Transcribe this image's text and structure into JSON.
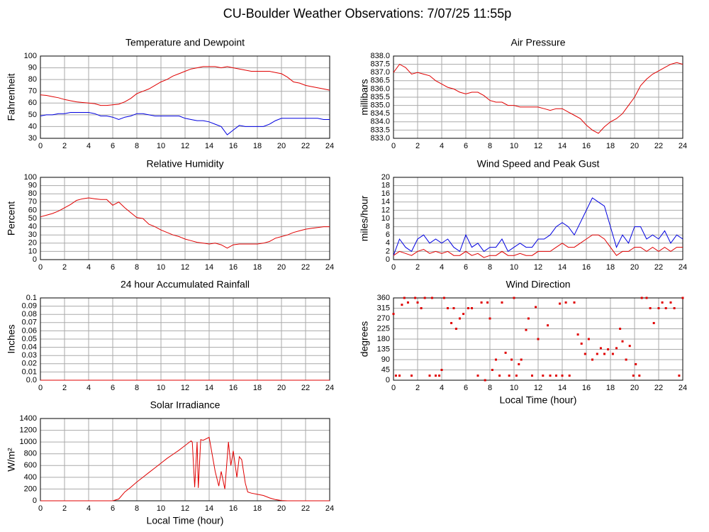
{
  "title": "CU-Boulder Weather Observations: 7/07/25 11:55p",
  "chart_data": [
    {
      "type": "line",
      "title": "Temperature and Dewpoint",
      "ylabel": "Fahrenheit",
      "xlim": [
        0,
        24
      ],
      "xticks": [
        0,
        2,
        4,
        6,
        8,
        10,
        12,
        14,
        16,
        18,
        20,
        22,
        24
      ],
      "ylim": [
        30,
        100
      ],
      "yticks": [
        30,
        40,
        50,
        60,
        70,
        80,
        90,
        100
      ],
      "grid": true,
      "x": [
        0,
        0.5,
        1,
        1.5,
        2,
        2.5,
        3,
        3.5,
        4,
        4.5,
        5,
        5.5,
        6,
        6.5,
        7,
        7.5,
        8,
        8.5,
        9,
        9.5,
        10,
        10.5,
        11,
        11.5,
        12,
        12.5,
        13,
        13.5,
        14,
        14.5,
        15,
        15.5,
        16,
        16.5,
        17,
        17.5,
        18,
        18.5,
        19,
        19.5,
        20,
        20.5,
        21,
        21.5,
        22,
        22.5,
        23,
        23.5,
        24
      ],
      "series": [
        {
          "color": "#e00000",
          "values": [
            67,
            66.5,
            65.5,
            64.5,
            63,
            62,
            61,
            60.5,
            60,
            59.5,
            58,
            58,
            58.5,
            59,
            61,
            64,
            68,
            70,
            72,
            75,
            78,
            80,
            83,
            85,
            87,
            89,
            90,
            91,
            91,
            91,
            90,
            91,
            90,
            89,
            88,
            87,
            87,
            87,
            87,
            86,
            85,
            82,
            78,
            77,
            75,
            74,
            73,
            72,
            71
          ]
        },
        {
          "color": "#0000e0",
          "values": [
            49,
            50,
            50,
            51,
            51,
            52,
            52,
            52,
            52,
            51,
            49,
            49,
            48,
            46,
            48,
            49,
            51,
            51,
            50,
            49,
            49,
            49,
            49,
            49,
            47,
            46,
            45,
            45,
            44,
            42,
            40,
            33,
            37,
            41,
            40,
            40,
            40,
            40,
            42,
            45,
            47,
            47,
            47,
            47,
            47,
            47,
            47,
            46,
            46
          ]
        }
      ]
    },
    {
      "type": "line",
      "title": "Air Pressure",
      "ylabel": "millibars",
      "xlim": [
        0,
        24
      ],
      "xticks": [
        0,
        2,
        4,
        6,
        8,
        10,
        12,
        14,
        16,
        18,
        20,
        22,
        24
      ],
      "ylim": [
        833,
        838
      ],
      "yticks": [
        {
          "value": 833,
          "label": "833.0"
        },
        833.5,
        {
          "value": 834,
          "label": "834.0"
        },
        834.5,
        {
          "value": 835,
          "label": "835.0"
        },
        835.5,
        {
          "value": 836,
          "label": "836.0"
        },
        836.5,
        {
          "value": 837,
          "label": "837.0"
        },
        837.5,
        {
          "value": 838,
          "label": "838.0"
        }
      ],
      "grid": true,
      "x": [
        0,
        0.5,
        1,
        1.5,
        2,
        2.5,
        3,
        3.5,
        4,
        4.5,
        5,
        5.5,
        6,
        6.5,
        7,
        7.5,
        8,
        8.5,
        9,
        9.5,
        10,
        10.5,
        11,
        11.5,
        12,
        12.5,
        13,
        13.5,
        14,
        14.5,
        15,
        15.5,
        16,
        16.5,
        17,
        17.5,
        18,
        18.5,
        19,
        19.5,
        20,
        20.5,
        21,
        21.5,
        22,
        22.5,
        23,
        23.5,
        24
      ],
      "series": [
        {
          "color": "#e00000",
          "values": [
            837,
            837.5,
            837.3,
            836.9,
            837,
            836.9,
            836.8,
            836.5,
            836.3,
            836.1,
            836,
            835.8,
            835.7,
            835.8,
            835.8,
            835.6,
            835.3,
            835.2,
            835.2,
            835,
            835,
            834.9,
            834.9,
            834.9,
            834.9,
            834.8,
            834.7,
            834.8,
            834.8,
            834.6,
            834.4,
            834.2,
            833.8,
            833.5,
            833.3,
            833.7,
            834,
            834.2,
            834.5,
            835,
            835.5,
            836.2,
            836.6,
            836.9,
            837.1,
            837.3,
            837.5,
            837.6,
            837.5
          ]
        }
      ]
    },
    {
      "type": "line",
      "title": "Relative Humidity",
      "ylabel": "Percent",
      "xlim": [
        0,
        24
      ],
      "xticks": [
        0,
        2,
        4,
        6,
        8,
        10,
        12,
        14,
        16,
        18,
        20,
        22,
        24
      ],
      "ylim": [
        0,
        100
      ],
      "yticks": [
        0,
        10,
        20,
        30,
        40,
        50,
        60,
        70,
        80,
        90,
        100
      ],
      "grid": true,
      "x": [
        0,
        0.5,
        1,
        1.5,
        2,
        2.5,
        3,
        3.5,
        4,
        4.5,
        5,
        5.5,
        6,
        6.5,
        7,
        7.5,
        8,
        8.5,
        9,
        9.5,
        10,
        10.5,
        11,
        11.5,
        12,
        12.5,
        13,
        13.5,
        14,
        14.5,
        15,
        15.5,
        16,
        16.5,
        17,
        17.5,
        18,
        18.5,
        19,
        19.5,
        20,
        20.5,
        21,
        21.5,
        22,
        22.5,
        23,
        23.5,
        24
      ],
      "series": [
        {
          "color": "#e00000",
          "values": [
            52,
            54,
            56,
            59,
            63,
            67,
            72,
            74,
            75,
            74,
            73,
            73,
            66,
            70,
            63,
            57,
            51,
            50,
            43,
            40,
            36,
            33,
            30,
            28,
            25,
            23,
            21,
            20,
            19,
            20,
            18,
            14,
            18,
            19,
            19,
            19,
            19,
            20,
            22,
            26,
            28,
            30,
            33,
            35,
            37,
            38,
            39,
            40,
            40
          ]
        }
      ]
    },
    {
      "type": "line",
      "title": "Wind Speed and Peak Gust",
      "ylabel": "miles/hour",
      "xlim": [
        0,
        24
      ],
      "xticks": [
        0,
        2,
        4,
        6,
        8,
        10,
        12,
        14,
        16,
        18,
        20,
        22,
        24
      ],
      "ylim": [
        0,
        20
      ],
      "yticks": [
        0,
        2,
        4,
        6,
        8,
        10,
        12,
        14,
        16,
        18,
        20
      ],
      "grid": true,
      "x": [
        0,
        0.5,
        1,
        1.5,
        2,
        2.5,
        3,
        3.5,
        4,
        4.5,
        5,
        5.5,
        6,
        6.5,
        7,
        7.5,
        8,
        8.5,
        9,
        9.5,
        10,
        10.5,
        11,
        11.5,
        12,
        12.5,
        13,
        13.5,
        14,
        14.5,
        15,
        15.5,
        16,
        16.5,
        17,
        17.5,
        18,
        18.5,
        19,
        19.5,
        20,
        20.5,
        21,
        21.5,
        22,
        22.5,
        23,
        23.5,
        24
      ],
      "series": [
        {
          "color": "#0000e0",
          "values": [
            1,
            5,
            3,
            2,
            5,
            6,
            4,
            5,
            4,
            5,
            3,
            2,
            6,
            3,
            4,
            2,
            3,
            3,
            5,
            2,
            3,
            4,
            3,
            3,
            5,
            5,
            6,
            8,
            9,
            8,
            6,
            9,
            12,
            15,
            14,
            13,
            8,
            3,
            6,
            4,
            8,
            8,
            5,
            6,
            5,
            7,
            4,
            6,
            5
          ]
        },
        {
          "color": "#e00000",
          "values": [
            1,
            2,
            1.5,
            1,
            2,
            2.5,
            1.5,
            2,
            1.5,
            2,
            1,
            1,
            2,
            1,
            1.5,
            0.5,
            1,
            1,
            2,
            1,
            1,
            1.5,
            1,
            1,
            2,
            2,
            2,
            3,
            4,
            3,
            3,
            4,
            5,
            6,
            6,
            5,
            3,
            1,
            2,
            2,
            3,
            3,
            2,
            3,
            2,
            3,
            2,
            3,
            3
          ]
        }
      ]
    },
    {
      "type": "line",
      "title": "24 hour Accumulated Rainfall",
      "ylabel": "Inches",
      "xlim": [
        0,
        24
      ],
      "xticks": [
        0,
        2,
        4,
        6,
        8,
        10,
        12,
        14,
        16,
        18,
        20,
        22,
        24
      ],
      "ylim": [
        0,
        0.1
      ],
      "yticks": [
        {
          "value": 0,
          "label": "0.0"
        },
        0.01,
        0.02,
        0.03,
        0.04,
        0.05,
        0.06,
        0.07,
        0.08,
        0.09,
        0.1
      ],
      "grid": true,
      "x": [
        0,
        24
      ],
      "series": [
        {
          "color": "#e00000",
          "values": [
            0,
            0
          ]
        }
      ]
    },
    {
      "type": "scatter",
      "title": "Wind Direction",
      "ylabel": "degrees",
      "xlabel": "Local Time (hour)",
      "xlim": [
        0,
        24
      ],
      "xticks": [
        0,
        2,
        4,
        6,
        8,
        10,
        12,
        14,
        16,
        18,
        20,
        22,
        24
      ],
      "ylim": [
        0,
        360
      ],
      "yticks": [
        0,
        45,
        90,
        135,
        180,
        225,
        270,
        315,
        360
      ],
      "grid": true,
      "color": "#e00000",
      "x": [
        0,
        0.2,
        0.5,
        0.7,
        0.9,
        1.2,
        1.5,
        1.8,
        2,
        2.3,
        2.6,
        3,
        3.2,
        3.5,
        3.8,
        4,
        4.2,
        4.5,
        4.8,
        5,
        5.2,
        5.5,
        5.8,
        6.2,
        6.5,
        7,
        7.3,
        7.6,
        7.8,
        8,
        8.2,
        8.5,
        8.8,
        9,
        9.3,
        9.6,
        9.8,
        10,
        10.2,
        10.4,
        10.6,
        11,
        11.2,
        11.5,
        11.8,
        12,
        12.4,
        12.8,
        13,
        13.5,
        13.8,
        14,
        14.3,
        14.6,
        15,
        15.3,
        15.6,
        15.9,
        16.2,
        16.5,
        16.9,
        17.2,
        17.5,
        17.8,
        18.2,
        18.5,
        18.8,
        19,
        19.3,
        19.6,
        19.9,
        20.1,
        20.4,
        20.6,
        21,
        21.3,
        21.6,
        22,
        22.3,
        22.6,
        23,
        23.3,
        23.7,
        24
      ],
      "values": [
        290,
        20,
        20,
        330,
        360,
        340,
        20,
        360,
        340,
        315,
        360,
        20,
        360,
        20,
        20,
        45,
        360,
        315,
        250,
        315,
        225,
        270,
        290,
        315,
        315,
        20,
        340,
        0,
        340,
        270,
        45,
        90,
        20,
        340,
        120,
        20,
        90,
        360,
        20,
        70,
        90,
        220,
        270,
        20,
        320,
        180,
        20,
        240,
        20,
        20,
        335,
        20,
        340,
        20,
        340,
        200,
        160,
        115,
        180,
        90,
        115,
        140,
        115,
        135,
        115,
        140,
        225,
        170,
        90,
        150,
        20,
        70,
        20,
        360,
        360,
        315,
        250,
        315,
        340,
        315,
        340,
        315,
        20,
        360
      ]
    },
    {
      "type": "line",
      "title": "Solar Irradiance",
      "ylabel": "W/m²",
      "xlabel": "Local Time (hour)",
      "xlim": [
        0,
        24
      ],
      "xticks": [
        0,
        2,
        4,
        6,
        8,
        10,
        12,
        14,
        16,
        18,
        20,
        22,
        24
      ],
      "ylim": [
        0,
        1400
      ],
      "yticks": [
        0,
        200,
        400,
        600,
        800,
        1000,
        1200,
        1400
      ],
      "grid": true,
      "x": [
        0,
        6,
        6.5,
        7,
        7.5,
        8,
        8.5,
        9,
        9.5,
        10,
        10.5,
        11,
        11.5,
        12,
        12.5,
        12.6,
        12.8,
        13,
        13.1,
        13.3,
        13.5,
        14,
        14.5,
        14.8,
        15,
        15.3,
        15.6,
        15.8,
        16,
        16.3,
        16.5,
        16.7,
        17,
        17.2,
        17.5,
        18,
        18.5,
        19,
        19.5,
        20,
        20.5,
        24
      ],
      "series": [
        {
          "color": "#e00000",
          "values": [
            0,
            0,
            30,
            150,
            230,
            320,
            400,
            480,
            560,
            640,
            720,
            790,
            860,
            940,
            1020,
            1000,
            230,
            1000,
            220,
            1040,
            1030,
            1080,
            500,
            250,
            500,
            200,
            1000,
            600,
            850,
            400,
            750,
            700,
            300,
            150,
            130,
            110,
            90,
            50,
            20,
            5,
            0,
            0
          ]
        }
      ]
    }
  ]
}
